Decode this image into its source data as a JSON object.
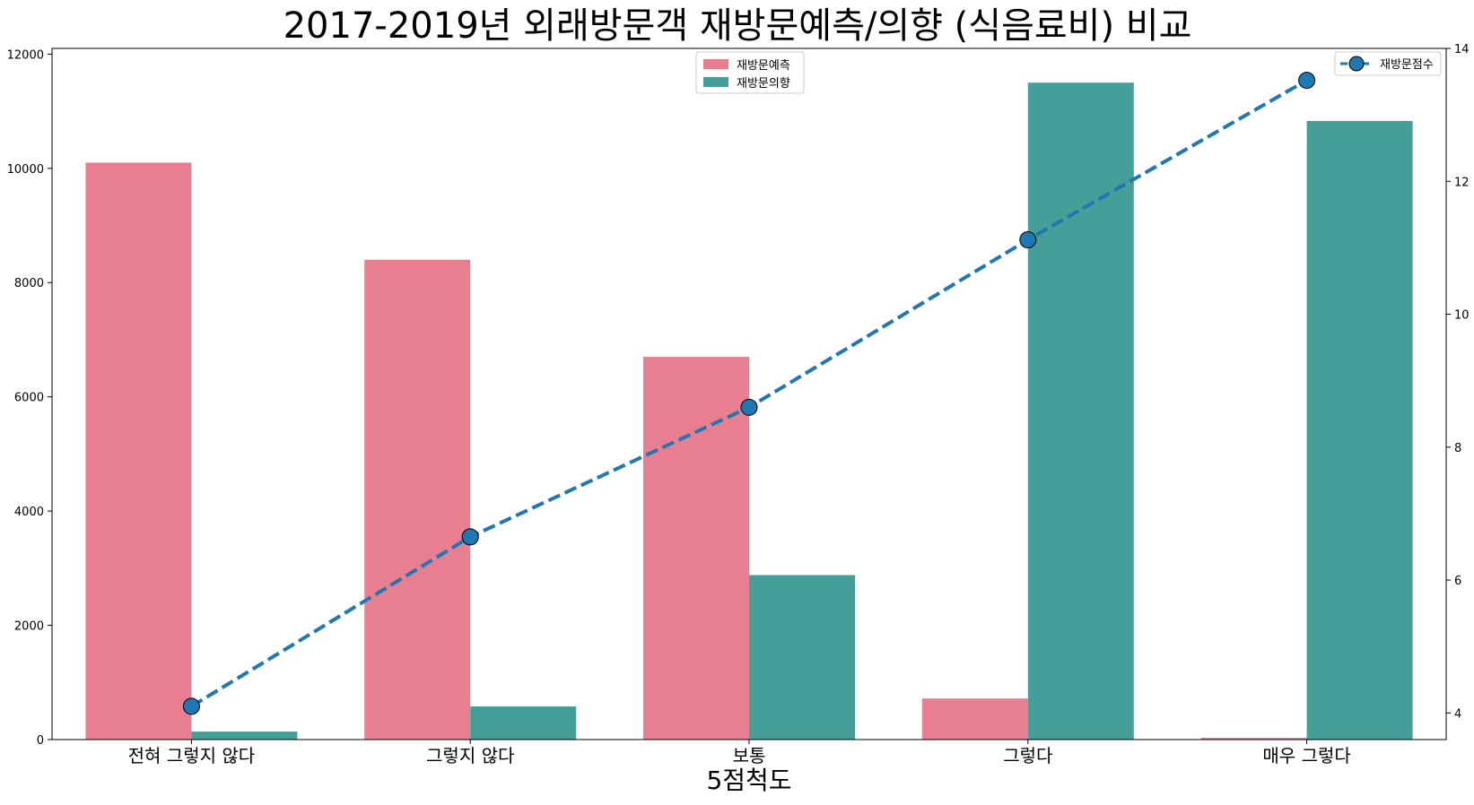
{
  "chart_data": {
    "type": "bar",
    "title": "2017-2019년 외래방문객 재방문예측/의향 (식음료비) 비교",
    "xlabel": "5점척도",
    "categories": [
      "전혀 그렇지 않다",
      "그렇지 않다",
      "보통",
      "그렇다",
      "매우 그렇다"
    ],
    "series": [
      {
        "name": "재방문예측",
        "values": [
          10100,
          8400,
          6700,
          720,
          30
        ],
        "color": "#e77f91"
      },
      {
        "name": "재방문의향",
        "values": [
          140,
          580,
          2880,
          11500,
          10830
        ],
        "color": "#459e98"
      }
    ],
    "line_series": {
      "name": "재방문점수",
      "values": [
        4.1,
        6.65,
        8.6,
        11.12,
        13.52
      ],
      "color": "#1f77b4"
    },
    "ylim": [
      0,
      12100
    ],
    "y_ticks": [
      0,
      2000,
      4000,
      6000,
      8000,
      10000,
      12000
    ],
    "y2lim": [
      3.6,
      14
    ],
    "y2_ticks": [
      4,
      6,
      8,
      10,
      12,
      14
    ],
    "bar_legend_position": "top-center",
    "line_legend_position": "top-right",
    "grid": false
  }
}
